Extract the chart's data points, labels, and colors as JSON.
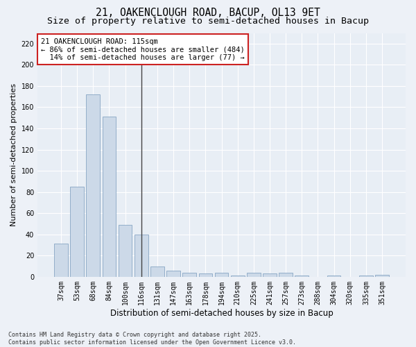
{
  "title1": "21, OAKENCLOUGH ROAD, BACUP, OL13 9ET",
  "title2": "Size of property relative to semi-detached houses in Bacup",
  "xlabel": "Distribution of semi-detached houses by size in Bacup",
  "ylabel": "Number of semi-detached properties",
  "categories": [
    "37sqm",
    "53sqm",
    "68sqm",
    "84sqm",
    "100sqm",
    "116sqm",
    "131sqm",
    "147sqm",
    "163sqm",
    "178sqm",
    "194sqm",
    "210sqm",
    "225sqm",
    "241sqm",
    "257sqm",
    "273sqm",
    "288sqm",
    "304sqm",
    "320sqm",
    "335sqm",
    "351sqm"
  ],
  "values": [
    31,
    85,
    172,
    151,
    49,
    40,
    10,
    6,
    4,
    3,
    4,
    1,
    4,
    3,
    4,
    1,
    0,
    1,
    0,
    1,
    2
  ],
  "bar_color_left": "#ccd9e8",
  "bar_color_right": "#ccd9e8",
  "bar_edge_color": "#7799bb",
  "vline_index": 5,
  "vline_color": "#444444",
  "annotation_text": "21 OAKENCLOUGH ROAD: 115sqm\n← 86% of semi-detached houses are smaller (484)\n  14% of semi-detached houses are larger (77) →",
  "annotation_box_color": "#ffffff",
  "annotation_box_edge": "#cc2222",
  "ylim": [
    0,
    230
  ],
  "yticks": [
    0,
    20,
    40,
    60,
    80,
    100,
    120,
    140,
    160,
    180,
    200,
    220
  ],
  "bg_color": "#e8eef5",
  "fig_bg_color": "#edf1f7",
  "footnote": "Contains HM Land Registry data © Crown copyright and database right 2025.\nContains public sector information licensed under the Open Government Licence v3.0.",
  "title1_fontsize": 10.5,
  "title2_fontsize": 9.5,
  "xlabel_fontsize": 8.5,
  "ylabel_fontsize": 8,
  "tick_fontsize": 7,
  "annot_fontsize": 7.5,
  "footnote_fontsize": 6
}
